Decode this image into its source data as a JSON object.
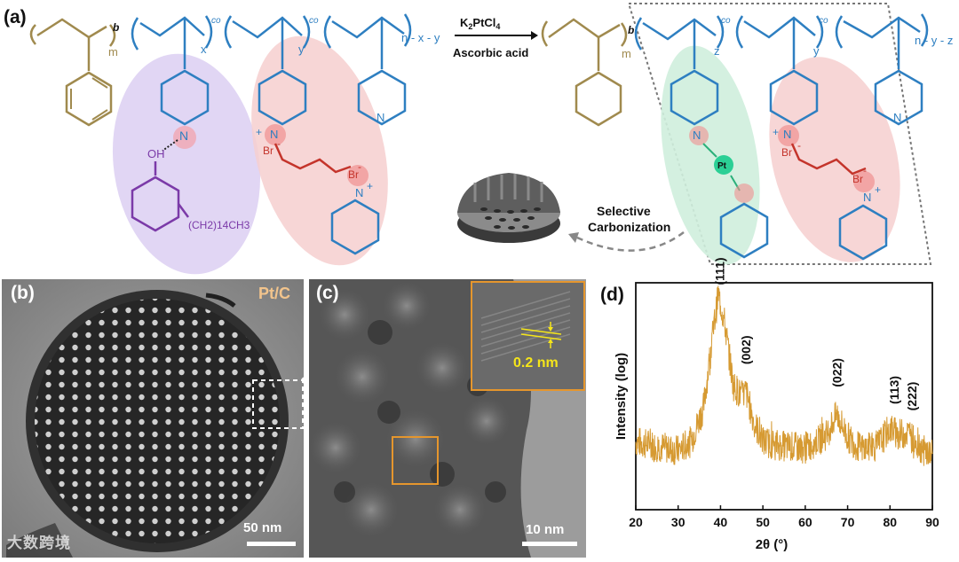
{
  "panels": {
    "a": "(a)",
    "b": "(b)",
    "c": "(c)",
    "d": "(d)"
  },
  "scheme": {
    "reagent_top": "K2PtCl4",
    "reagent_bottom": "Ascorbic acid",
    "selective": "Selective",
    "carbonization": "Carbonization",
    "sub_b": "b",
    "sub_m": "m",
    "sub_x": "x",
    "sub_y": "y",
    "sub_nxy": "n - x - y",
    "sub_z": "z",
    "sub_nyz": "n - y - z",
    "co": "co",
    "oh": "OH",
    "n": "N",
    "br": "Br",
    "alkyl": "(CH2)14CH3",
    "pt": "Pt",
    "plus": "+",
    "minus": "-"
  },
  "tem_b": {
    "label": "Pt/C",
    "scale": "50 nm"
  },
  "tem_c": {
    "scale": "10 nm",
    "inset_label": "0.2 nm"
  },
  "watermark": "大数跨境",
  "colors": {
    "ps": "#a08a4e",
    "p4vp": "#2e7fc1",
    "purple": "#7b3aa8",
    "red": "#c4342b",
    "green": "#2bb07a",
    "orange": "#e5962d",
    "xrd": "#d69a32"
  },
  "chart_data": {
    "type": "line",
    "title": "",
    "xlabel": "2θ (°)",
    "ylabel": "Intensity (log)",
    "xlim": [
      20,
      90
    ],
    "x_ticks": [
      20,
      30,
      40,
      50,
      60,
      70,
      80,
      90
    ],
    "y_scale": "log",
    "y_ticks_shown": false,
    "grid": false,
    "series": [
      {
        "x": [
          20,
          25,
          30,
          33,
          36,
          38,
          39.5,
          41,
          43,
          45,
          46,
          48,
          50,
          55,
          60,
          65,
          67.5,
          70,
          73,
          77,
          80,
          82,
          84,
          86,
          88,
          90
        ],
        "y": [
          0.3,
          0.28,
          0.26,
          0.3,
          0.45,
          0.75,
          0.95,
          0.82,
          0.55,
          0.5,
          0.52,
          0.38,
          0.3,
          0.28,
          0.27,
          0.33,
          0.42,
          0.32,
          0.27,
          0.28,
          0.36,
          0.33,
          0.34,
          0.3,
          0.26,
          0.24
        ]
      }
    ],
    "peak_labels": [
      {
        "label": "(111)",
        "x": 39.8
      },
      {
        "label": "(002)",
        "x": 46.0
      },
      {
        "label": "(022)",
        "x": 67.5
      },
      {
        "label": "(113)",
        "x": 81.0
      },
      {
        "label": "(222)",
        "x": 85.2
      }
    ]
  }
}
